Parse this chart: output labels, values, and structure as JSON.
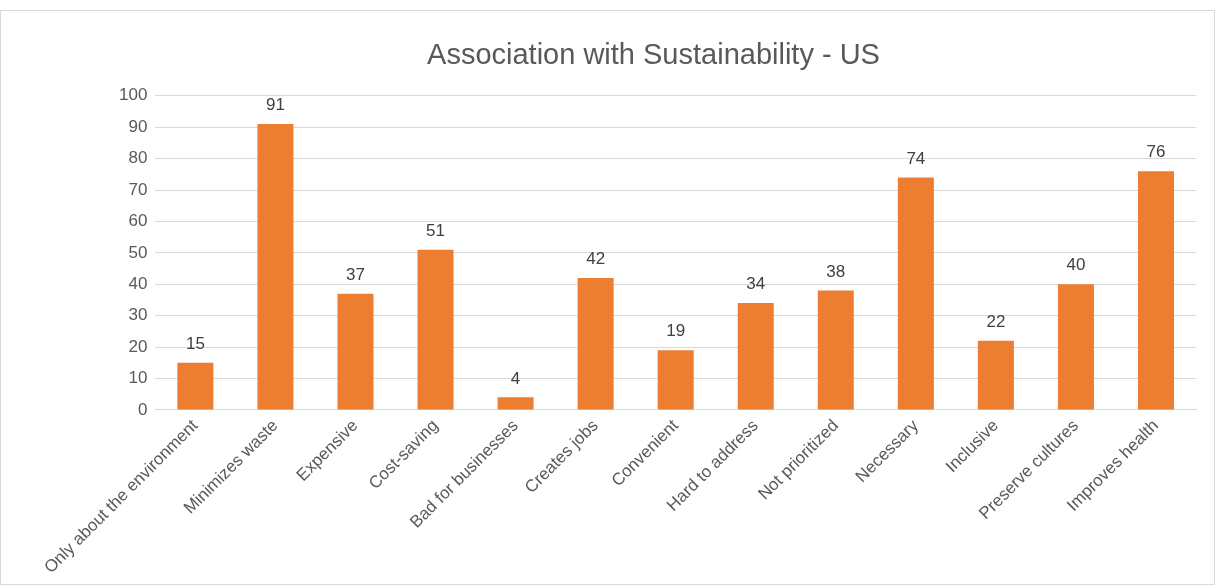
{
  "chart_data": {
    "type": "bar",
    "title": "Association with Sustainability - US",
    "categories": [
      "Only about the environment",
      "Minimizes waste",
      "Expensive",
      "Cost-saving",
      "Bad for businesses",
      "Creates jobs",
      "Convenient",
      "Hard to address",
      "Not prioritized",
      "Necessary",
      "Inclusive",
      "Preserve cultures",
      "Improves health"
    ],
    "values": [
      15,
      91,
      37,
      51,
      4,
      42,
      19,
      34,
      38,
      74,
      22,
      40,
      76
    ],
    "color": "#ed7d31",
    "ylim": [
      0,
      100
    ],
    "yticks": [
      0,
      10,
      20,
      30,
      40,
      50,
      60,
      70,
      80,
      90,
      100
    ],
    "grid": "y",
    "data_labels": true
  }
}
